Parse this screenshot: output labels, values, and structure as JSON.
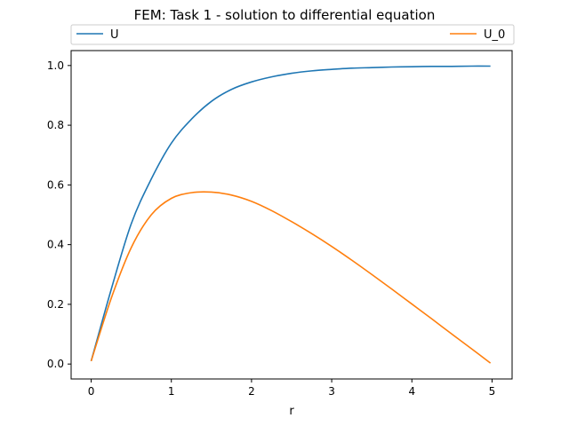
{
  "chart_data": {
    "type": "line",
    "title": "FEM: Task 1 - solution to differential equation",
    "xlabel": "r",
    "ylabel": "",
    "xlim": [
      -0.25,
      5.25
    ],
    "ylim": [
      -0.05,
      1.05
    ],
    "xticks": [
      0,
      1,
      2,
      3,
      4,
      5
    ],
    "yticks": [
      0.0,
      0.2,
      0.4,
      0.6,
      0.8,
      1.0
    ],
    "xtick_labels": [
      "0",
      "1",
      "2",
      "3",
      "4",
      "5"
    ],
    "ytick_labels": [
      "0.0",
      "0.2",
      "0.4",
      "0.6",
      "0.8",
      "1.0"
    ],
    "grid": false,
    "legend": "top-outside",
    "x": [
      0,
      0.25,
      0.5,
      0.75,
      1.0,
      1.25,
      1.5,
      1.75,
      2.0,
      2.25,
      2.5,
      2.75,
      3.0,
      3.25,
      3.5,
      3.75,
      4.0,
      4.25,
      4.5,
      4.75,
      4.98
    ],
    "series": [
      {
        "name": "U",
        "color": "#1f77b4",
        "values": [
          0.01,
          0.25,
          0.47,
          0.62,
          0.74,
          0.82,
          0.88,
          0.92,
          0.945,
          0.962,
          0.974,
          0.982,
          0.987,
          0.991,
          0.993,
          0.995,
          0.996,
          0.997,
          0.997,
          0.998,
          0.998
        ]
      },
      {
        "name": "U_0",
        "color": "#ff7f0e",
        "values": [
          0.01,
          0.22,
          0.39,
          0.5,
          0.555,
          0.574,
          0.576,
          0.566,
          0.545,
          0.514,
          0.477,
          0.437,
          0.394,
          0.348,
          0.3,
          0.251,
          0.201,
          0.151,
          0.1,
          0.05,
          0.003
        ]
      }
    ]
  }
}
